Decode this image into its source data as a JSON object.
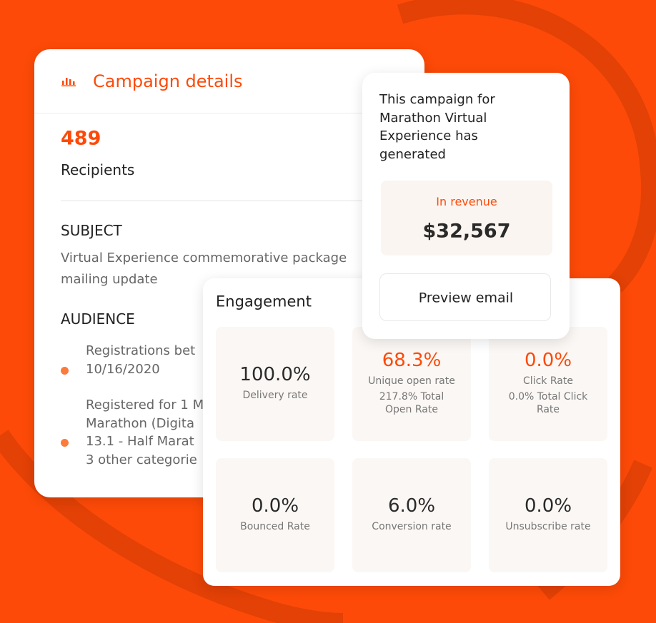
{
  "campaign_details": {
    "title": "Campaign details",
    "recipients_count": "489",
    "recipients_label": "Recipients",
    "subject_heading": "SUBJECT",
    "subject_lines": [
      "Virtual Experience commemorative package",
      "mailing update"
    ],
    "audience_heading": "AUDIENCE",
    "audience_items": [
      [
        "Registrations bet",
        "10/16/2020"
      ],
      [
        "Registered for 1 M",
        "Marathon (Digita",
        "13.1 - Half Marat",
        "3 other categorie"
      ]
    ]
  },
  "revenue": {
    "intro_lines": [
      "This campaign for",
      "Marathon Virtual",
      "Experience has",
      "generated"
    ],
    "label": "In revenue",
    "amount": "$32,567",
    "button": "Preview email"
  },
  "engagement": {
    "title": "Engagement",
    "metrics": [
      {
        "value": "100.0%",
        "label": "Delivery rate",
        "highlight": false
      },
      {
        "value": "68.3%",
        "label": "Unique open rate",
        "detail_lines": [
          "217.8% Total",
          "Open Rate"
        ],
        "highlight": true
      },
      {
        "value": "0.0%",
        "label": "Click Rate",
        "detail_lines": [
          "0.0% Total Click",
          "Rate"
        ],
        "highlight": true
      },
      {
        "value": "0.0%",
        "label": "Bounced Rate",
        "highlight": false
      },
      {
        "value": "6.0%",
        "label": "Conversion rate",
        "highlight": false
      },
      {
        "value": "0.0%",
        "label": "Unsubscribe rate",
        "highlight": false
      }
    ]
  }
}
